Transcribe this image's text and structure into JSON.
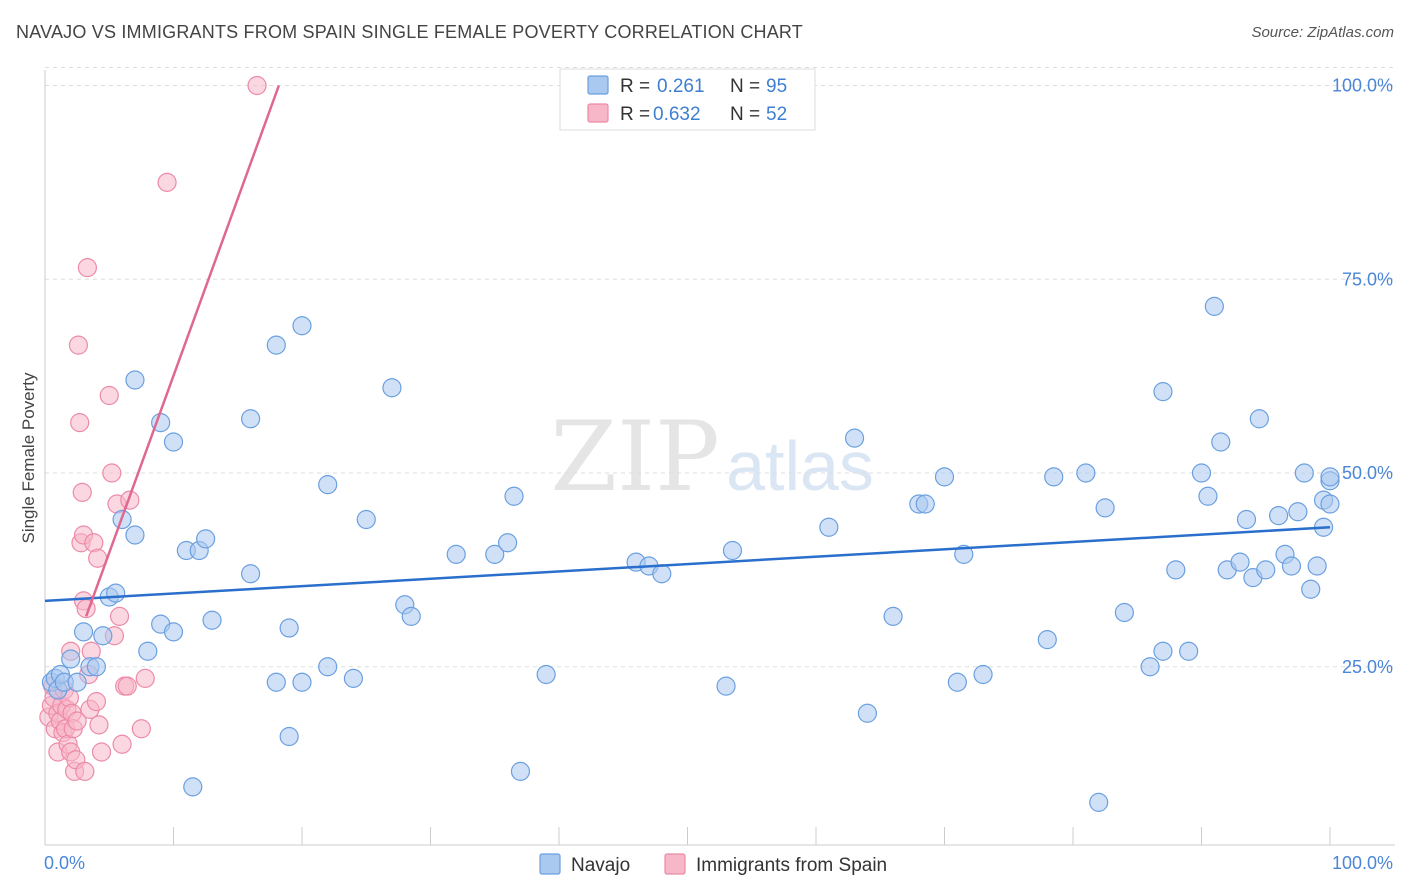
{
  "title": "NAVAJO VS IMMIGRANTS FROM SPAIN SINGLE FEMALE POVERTY CORRELATION CHART",
  "source": "Source: ZipAtlas.com",
  "watermark": {
    "zip": "ZIP",
    "atlas": "atlas"
  },
  "colors": {
    "navajo_fill": "#aac9f0",
    "navajo_stroke": "#6a9fe0",
    "navajo_line": "#2a6fcc",
    "spain_fill": "#f7b7c9",
    "spain_stroke": "#ec8aa8",
    "spain_line": "#e06890",
    "tick": "#4a86d8",
    "grid": "#dddddd"
  },
  "legend": {
    "r_label": "R =",
    "n_label": "N =",
    "navajo": {
      "r": "0.261",
      "n": "95"
    },
    "spain": {
      "r": "0.632",
      "n": "52"
    }
  },
  "chart_data": {
    "type": "scatter",
    "title": "NAVAJO VS IMMIGRANTS FROM SPAIN SINGLE FEMALE POVERTY CORRELATION CHART",
    "xlabel": "",
    "ylabel": "Single Female Poverty",
    "xlim": [
      0,
      100
    ],
    "ylim": [
      2,
      102
    ],
    "x_tick_labels": [
      "0.0%",
      "100.0%"
    ],
    "y_ticks": [
      25,
      50,
      75,
      100
    ],
    "y_tick_labels": [
      "25.0%",
      "50.0%",
      "75.0%",
      "100.0%"
    ],
    "grid": true,
    "series": [
      {
        "name": "Navajo",
        "trend": {
          "x": [
            0,
            100
          ],
          "y": [
            33.5,
            43.0
          ]
        },
        "points": [
          [
            0.5,
            23
          ],
          [
            0.8,
            23.5
          ],
          [
            1.0,
            22
          ],
          [
            1.2,
            24
          ],
          [
            1.5,
            23
          ],
          [
            2,
            26
          ],
          [
            2.5,
            23
          ],
          [
            3,
            29.5
          ],
          [
            3.5,
            25
          ],
          [
            4,
            25
          ],
          [
            4.5,
            29
          ],
          [
            5,
            34
          ],
          [
            5.5,
            34.5
          ],
          [
            6,
            44
          ],
          [
            7,
            42
          ],
          [
            7,
            62
          ],
          [
            8,
            27
          ],
          [
            9,
            30.5
          ],
          [
            9,
            56.5
          ],
          [
            10,
            54
          ],
          [
            10,
            29.5
          ],
          [
            11,
            40
          ],
          [
            11.5,
            9.5
          ],
          [
            12,
            40
          ],
          [
            12.5,
            41.5
          ],
          [
            13,
            31
          ],
          [
            16,
            37
          ],
          [
            16,
            57
          ],
          [
            18,
            23
          ],
          [
            18,
            66.5
          ],
          [
            19,
            16
          ],
          [
            19,
            30
          ],
          [
            20,
            23
          ],
          [
            20,
            69
          ],
          [
            22,
            25
          ],
          [
            22,
            48.5
          ],
          [
            24,
            23.5
          ],
          [
            25,
            44
          ],
          [
            27,
            61
          ],
          [
            28,
            33
          ],
          [
            28.5,
            31.5
          ],
          [
            32,
            39.5
          ],
          [
            35,
            39.5
          ],
          [
            36,
            41
          ],
          [
            36.5,
            47
          ],
          [
            37,
            11.5
          ],
          [
            39,
            24
          ],
          [
            46,
            38.5
          ],
          [
            47,
            38
          ],
          [
            48,
            37
          ],
          [
            53,
            22.5
          ],
          [
            53.5,
            40
          ],
          [
            61,
            43
          ],
          [
            63,
            54.5
          ],
          [
            64,
            19
          ],
          [
            66,
            31.5
          ],
          [
            68,
            46
          ],
          [
            68.5,
            46
          ],
          [
            70,
            49.5
          ],
          [
            71,
            23
          ],
          [
            71.5,
            39.5
          ],
          [
            73,
            24
          ],
          [
            78,
            28.5
          ],
          [
            78.5,
            49.5
          ],
          [
            81,
            50
          ],
          [
            82,
            7.5
          ],
          [
            82.5,
            45.5
          ],
          [
            84,
            32
          ],
          [
            86,
            25
          ],
          [
            87,
            60.5
          ],
          [
            87,
            27
          ],
          [
            88,
            37.5
          ],
          [
            89,
            27
          ],
          [
            90,
            50
          ],
          [
            90.5,
            47
          ],
          [
            91,
            71.5
          ],
          [
            91.5,
            54
          ],
          [
            92,
            37.5
          ],
          [
            93,
            38.5
          ],
          [
            93.5,
            44
          ],
          [
            94,
            36.5
          ],
          [
            94.5,
            57
          ],
          [
            95,
            37.5
          ],
          [
            96,
            44.5
          ],
          [
            96.5,
            39.5
          ],
          [
            97,
            38
          ],
          [
            97.5,
            45
          ],
          [
            98,
            50
          ],
          [
            98.5,
            35
          ],
          [
            99,
            38
          ],
          [
            99.5,
            46.5
          ],
          [
            99.5,
            43
          ],
          [
            100,
            46
          ],
          [
            100,
            49
          ],
          [
            100,
            49.5
          ]
        ]
      },
      {
        "name": "Immigrants from Spain",
        "trend": {
          "x": [
            3.2,
            18.2
          ],
          "y": [
            31.5,
            100
          ]
        },
        "points": [
          [
            0.3,
            18.5
          ],
          [
            0.5,
            20
          ],
          [
            0.6,
            22.5
          ],
          [
            0.7,
            21
          ],
          [
            0.8,
            17
          ],
          [
            1,
            19
          ],
          [
            1,
            14
          ],
          [
            1.2,
            18
          ],
          [
            1.3,
            20
          ],
          [
            1.4,
            16.5
          ],
          [
            1.5,
            22
          ],
          [
            1.6,
            17
          ],
          [
            1.7,
            19.5
          ],
          [
            1.8,
            15
          ],
          [
            1.9,
            21
          ],
          [
            2,
            14
          ],
          [
            2,
            27
          ],
          [
            2.1,
            19
          ],
          [
            2.2,
            17
          ],
          [
            2.3,
            11.5
          ],
          [
            2.4,
            13
          ],
          [
            2.5,
            18
          ],
          [
            2.6,
            66.5
          ],
          [
            2.7,
            56.5
          ],
          [
            2.8,
            41
          ],
          [
            2.9,
            47.5
          ],
          [
            3,
            42
          ],
          [
            3,
            33.5
          ],
          [
            3.1,
            11.5
          ],
          [
            3.2,
            32.5
          ],
          [
            3.3,
            76.5
          ],
          [
            3.4,
            24
          ],
          [
            3.5,
            19.5
          ],
          [
            3.6,
            27
          ],
          [
            3.8,
            41
          ],
          [
            4,
            20.5
          ],
          [
            4.1,
            39
          ],
          [
            4.2,
            17.5
          ],
          [
            4.4,
            14
          ],
          [
            5,
            60
          ],
          [
            5.2,
            50
          ],
          [
            5.4,
            29
          ],
          [
            5.6,
            46
          ],
          [
            5.8,
            31.5
          ],
          [
            6,
            15
          ],
          [
            6.2,
            22.5
          ],
          [
            6.4,
            22.5
          ],
          [
            6.6,
            46.5
          ],
          [
            7.5,
            17
          ],
          [
            7.8,
            23.5
          ],
          [
            9.5,
            87.5
          ],
          [
            16.5,
            100
          ]
        ]
      }
    ]
  },
  "bottom_legend": {
    "navajo": "Navajo",
    "spain": "Immigrants from Spain"
  }
}
